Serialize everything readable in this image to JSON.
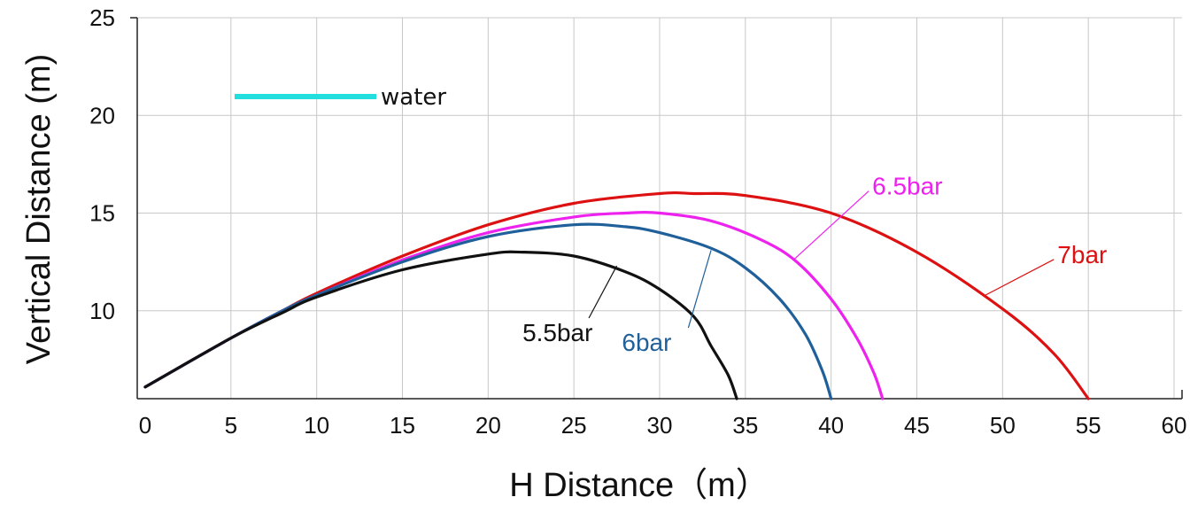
{
  "chart_data": {
    "type": "line",
    "title": "",
    "xlabel": "H Distance（m）",
    "ylabel": "Vertical Distance (m)",
    "xlim": [
      0,
      60
    ],
    "ylim": [
      5.5,
      25
    ],
    "x_ticks": [
      "0",
      "5",
      "10",
      "15",
      "20",
      "25",
      "30",
      "35",
      "40",
      "45",
      "50",
      "55",
      "60"
    ],
    "y_ticks": [
      "10",
      "15",
      "20",
      "25"
    ],
    "grid": true,
    "legend": {
      "position": "top-left",
      "entries": [
        {
          "label": "water",
          "color": "#22dede"
        }
      ]
    },
    "series": [
      {
        "name": "5.5bar",
        "color": "#111111",
        "x": [
          0,
          5,
          8,
          10,
          15,
          20,
          22,
          25,
          28,
          30,
          32,
          33,
          34,
          34.5
        ],
        "y": [
          6.1,
          8.6,
          9.9,
          10.7,
          12.1,
          12.9,
          13.0,
          12.8,
          12.0,
          11.1,
          9.7,
          8.2,
          6.7,
          5.5
        ]
      },
      {
        "name": "6bar",
        "color": "#1f5f9a",
        "x": [
          0,
          5,
          8,
          10,
          15,
          20,
          25,
          28,
          30,
          33,
          35,
          37,
          38.5,
          39.5,
          40
        ],
        "y": [
          6.1,
          8.6,
          10.0,
          10.8,
          12.5,
          13.8,
          14.4,
          14.3,
          14.0,
          13.2,
          12.2,
          10.6,
          8.8,
          6.9,
          5.5
        ]
      },
      {
        "name": "6.5bar",
        "color": "#ee22ee",
        "x": [
          0,
          5,
          8,
          10,
          15,
          20,
          25,
          28,
          30,
          33,
          36,
          38,
          40,
          41.5,
          42.5,
          43
        ],
        "y": [
          6.1,
          8.6,
          10.0,
          10.8,
          12.6,
          14.0,
          14.8,
          15.0,
          15.0,
          14.6,
          13.6,
          12.5,
          10.6,
          8.6,
          6.8,
          5.5
        ]
      },
      {
        "name": "7bar",
        "color": "#dd1111",
        "x": [
          0,
          5,
          8,
          10,
          15,
          20,
          25,
          30,
          32,
          35,
          40,
          45,
          50,
          53,
          55
        ],
        "y": [
          6.1,
          8.6,
          10.0,
          10.9,
          12.8,
          14.4,
          15.5,
          16.0,
          16.0,
          15.9,
          15.0,
          13.0,
          10.1,
          7.8,
          5.5
        ]
      }
    ],
    "annotations": [
      {
        "text": "5.5bar",
        "series": "5.5bar",
        "color": "#111111",
        "point": [
          27.5,
          12.3
        ],
        "label_at": [
          22,
          8.9
        ]
      },
      {
        "text": "6bar",
        "series": "6bar",
        "color": "#1f5f9a",
        "point": [
          33,
          13.1
        ],
        "label_at": [
          27.8,
          8.4
        ]
      },
      {
        "text": "6.5bar",
        "series": "6.5bar",
        "color": "#ee22ee",
        "point": [
          37.8,
          12.6
        ],
        "label_at": [
          42.4,
          16.4
        ]
      },
      {
        "text": "7bar",
        "series": "7bar",
        "color": "#dd1111",
        "point": [
          49,
          10.8
        ],
        "label_at": [
          53.2,
          12.9
        ]
      }
    ]
  }
}
